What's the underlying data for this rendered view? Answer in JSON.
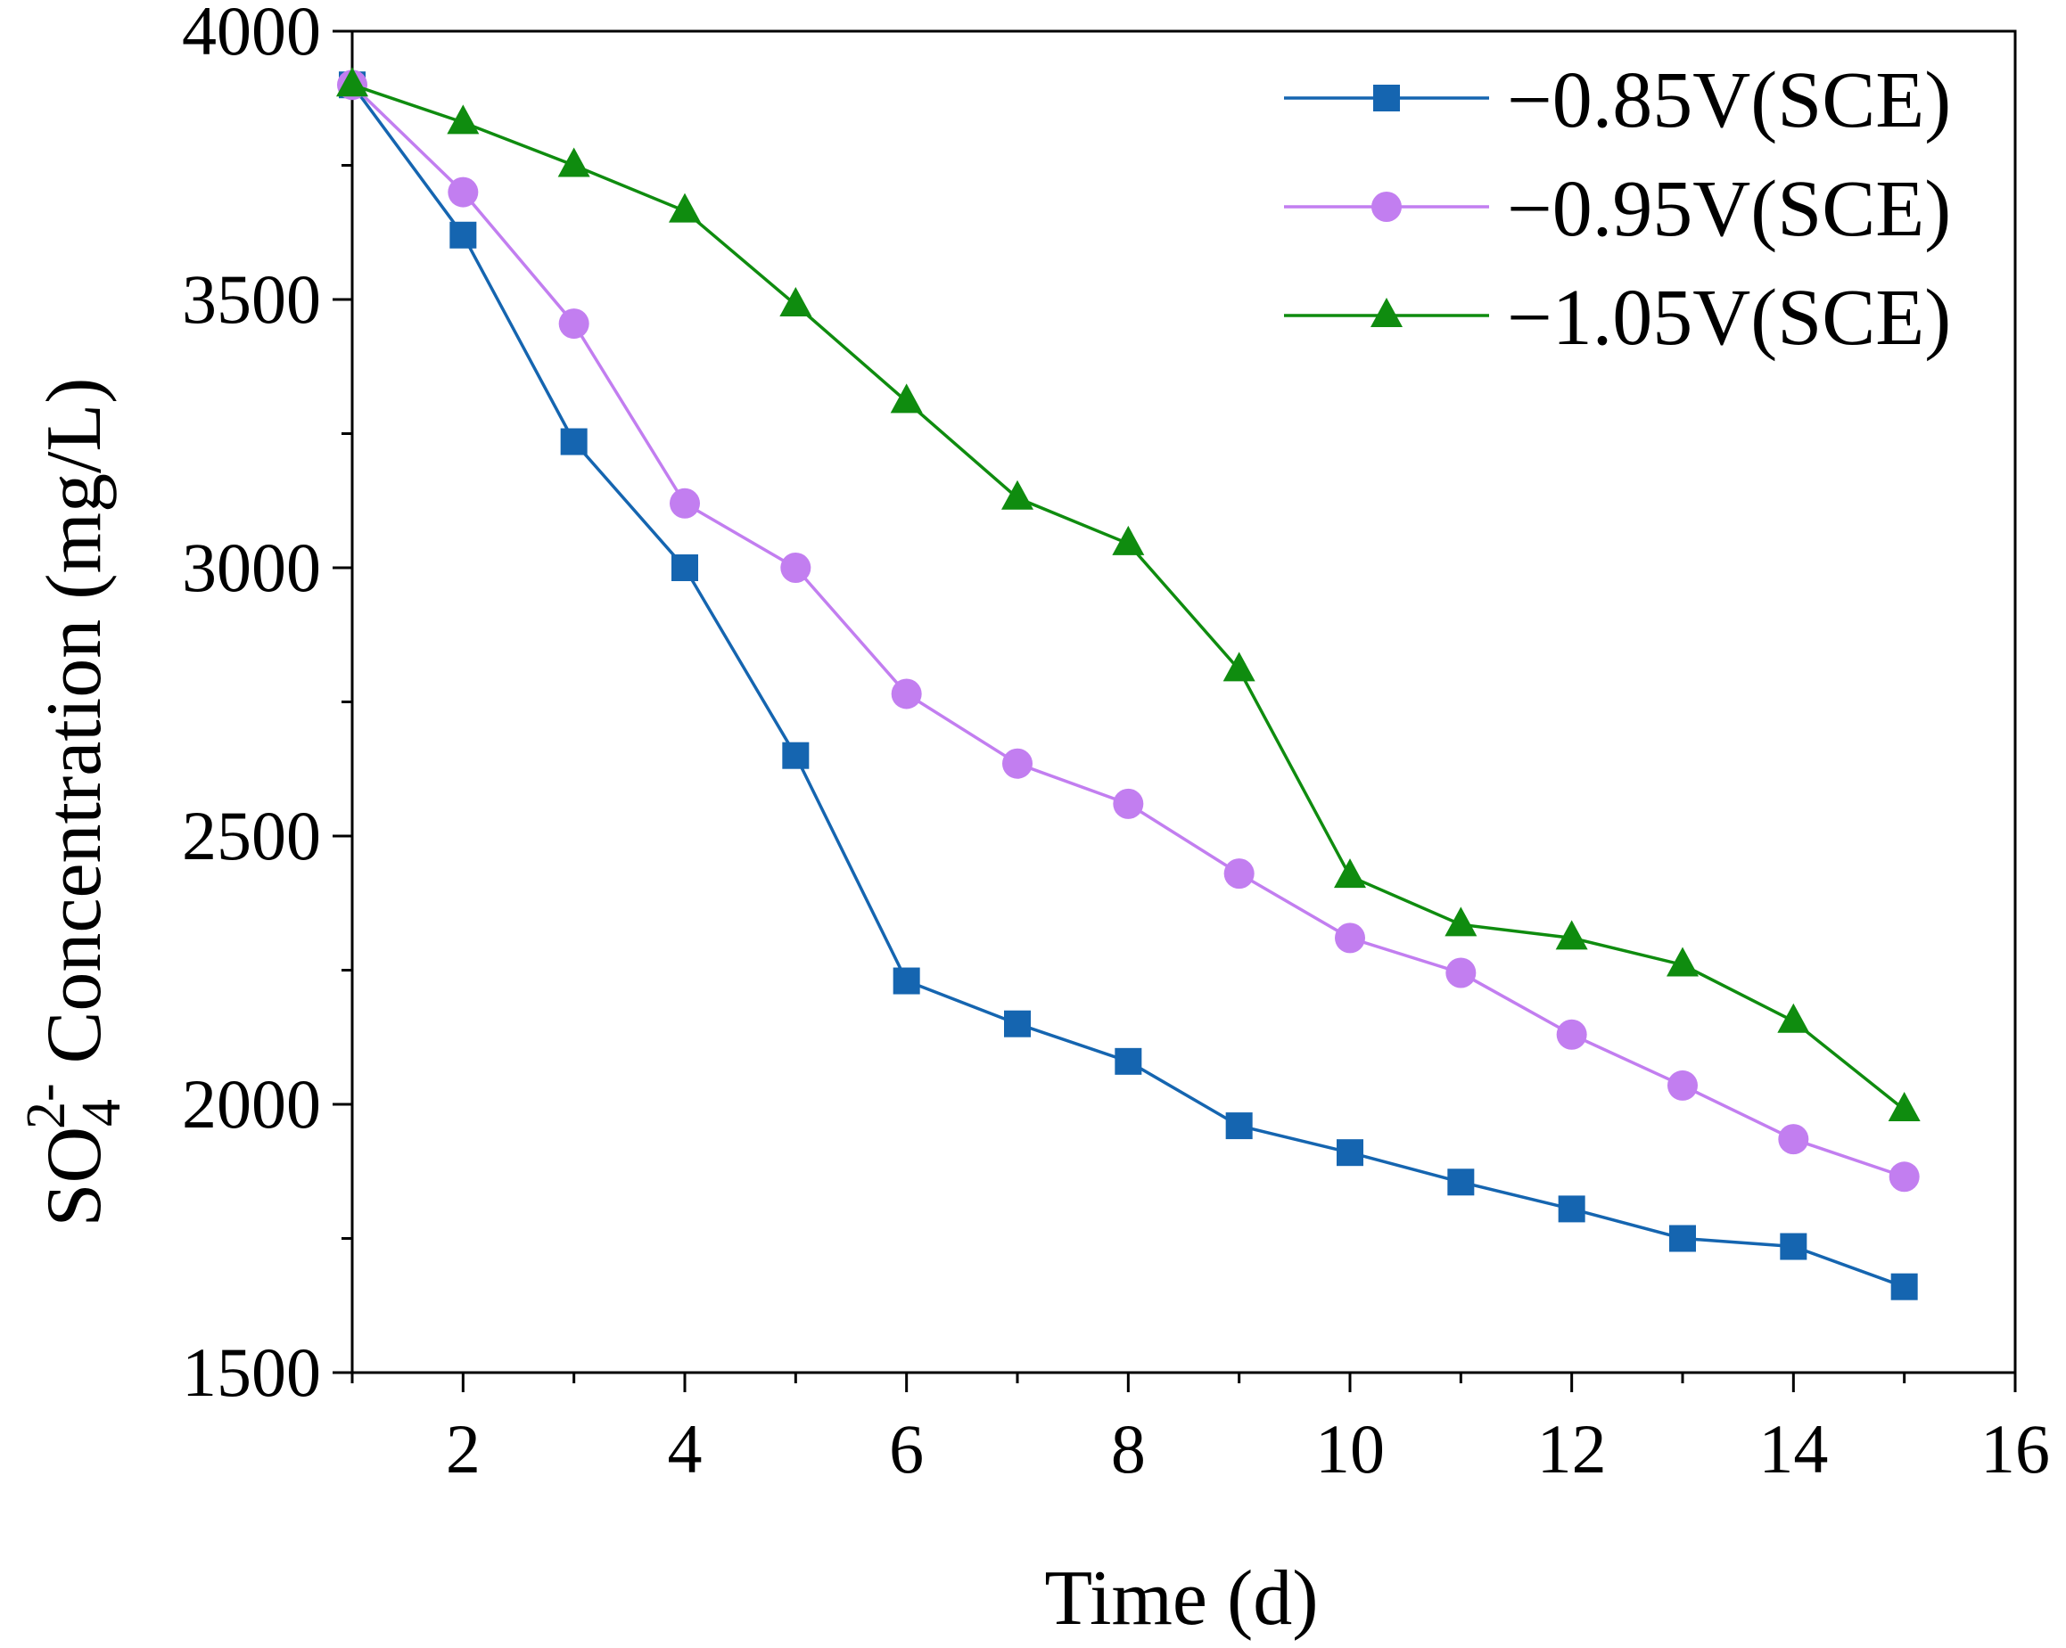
{
  "chart_data": {
    "type": "line",
    "title": "",
    "xlabel": "Time (d)",
    "ylabel": {
      "base": "SO",
      "subscript": "4",
      "superscript": "2-",
      "rest": " Concentration (mg/L)"
    },
    "xlim": [
      1,
      16
    ],
    "ylim": [
      1500,
      4000
    ],
    "xticks": [
      2,
      4,
      6,
      8,
      10,
      12,
      14,
      16
    ],
    "yticks": [
      1500,
      2000,
      2500,
      3000,
      3500,
      4000
    ],
    "legend_position": "top-right",
    "x": [
      1,
      2,
      3,
      4,
      5,
      6,
      7,
      8,
      9,
      10,
      11,
      12,
      13,
      14,
      15
    ],
    "series": [
      {
        "name": "−0.85V(SCE)",
        "color": "#1565b0",
        "marker": "square",
        "values": [
          3900,
          3620,
          3235,
          3000,
          2650,
          2230,
          2150,
          2080,
          1960,
          1910,
          1855,
          1805,
          1750,
          1735,
          1660
        ]
      },
      {
        "name": "−0.95V(SCE)",
        "color": "#c27ef0",
        "marker": "circle",
        "values": [
          3900,
          3700,
          3455,
          3120,
          3000,
          2765,
          2635,
          2560,
          2430,
          2310,
          2245,
          2130,
          2035,
          1935,
          1865
        ]
      },
      {
        "name": "−1.05V(SCE)",
        "color": "#0f8c0f",
        "marker": "triangle",
        "values": [
          3900,
          3830,
          3750,
          3665,
          3490,
          3310,
          3130,
          3045,
          2810,
          2425,
          2335,
          2310,
          2260,
          2155,
          1990
        ]
      }
    ]
  }
}
